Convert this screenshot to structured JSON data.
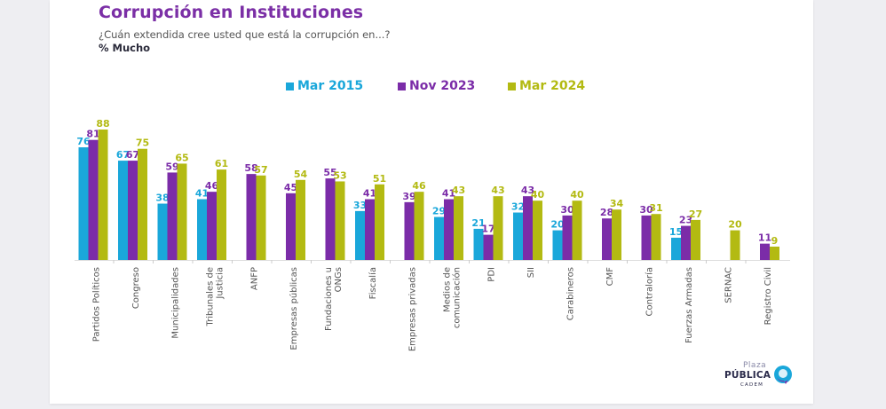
{
  "header": {
    "title": "Corrupción en Instituciones",
    "subtitle": "¿Cuán extendida cree usted que está la corrupción en...?",
    "measure": "% Mucho"
  },
  "logo": {
    "line1": "Plaza",
    "line2": "PÚBLICA",
    "line3": "CADEM"
  },
  "colors": {
    "Mar 2015": "#1aa7da",
    "Nov 2023": "#7b2ca8",
    "Mar 2024": "#b3ba12"
  },
  "chart_data": {
    "type": "bar",
    "title": "Corrupción en Instituciones",
    "subtitle": "¿Cuán extendida cree usted que está la corrupción en...?",
    "ylabel": "% Mucho",
    "xlabel": "",
    "ylim": [
      0,
      100
    ],
    "grid": false,
    "legend": "top-center",
    "categories": [
      "Partidos Políticos",
      "Congreso",
      "Municipalidades",
      "Tribunales de Justicia",
      "ANFP",
      "Empresas públicas",
      "Fundaciones u ONGs",
      "Fiscalía",
      "Empresas privadas",
      "Medios de comunicación",
      "PDI",
      "SII",
      "Carabineros",
      "CMF",
      "Contraloría",
      "Fuerzas Armadas",
      "SERNAC",
      "Registro Civil"
    ],
    "category_lines": [
      [
        "Partidos Políticos"
      ],
      [
        "Congreso"
      ],
      [
        "Municipalidades"
      ],
      [
        "Tribunales de",
        "Justicia"
      ],
      [
        "ANFP"
      ],
      [
        "Empresas públicas"
      ],
      [
        "Fundaciones u",
        "ONGs"
      ],
      [
        "Fiscalía"
      ],
      [
        "Empresas privadas"
      ],
      [
        "Medios de",
        "comunicación"
      ],
      [
        "PDI"
      ],
      [
        "SII"
      ],
      [
        "Carabineros"
      ],
      [
        "CMF"
      ],
      [
        "Contraloría"
      ],
      [
        "Fuerzas Armadas"
      ],
      [
        "SERNAC"
      ],
      [
        "Registro Civil"
      ]
    ],
    "series": [
      {
        "name": "Mar 2015",
        "values": [
          76,
          67,
          38,
          41,
          null,
          null,
          null,
          33,
          null,
          29,
          21,
          32,
          20,
          null,
          null,
          15,
          null,
          null
        ]
      },
      {
        "name": "Nov 2023",
        "values": [
          81,
          67,
          59,
          46,
          58,
          45,
          55,
          41,
          39,
          41,
          17,
          43,
          30,
          28,
          30,
          23,
          null,
          11
        ]
      },
      {
        "name": "Mar 2024",
        "values": [
          88,
          75,
          65,
          61,
          57,
          54,
          53,
          51,
          46,
          43,
          43,
          40,
          40,
          34,
          31,
          27,
          20,
          9
        ]
      }
    ]
  }
}
